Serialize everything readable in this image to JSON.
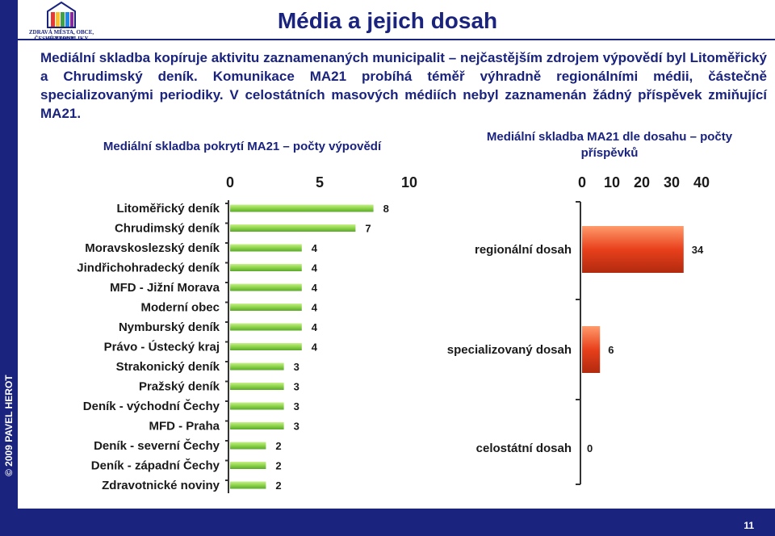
{
  "header": {
    "logo_line1": "ZDRAVÁ MĚSTA, OBCE, REGIONY",
    "logo_line2": "ČESKÉ REPUBLIKY",
    "title": "Média a jejich dosah"
  },
  "sidebar": {
    "copyright": "© 2009 PAVEL HEROT"
  },
  "intro": "Mediální skladba kopíruje aktivitu zaznamenaných municipalit – nejčastějším zdrojem výpovědí byl Litoměřický a Chrudimský deník. Komunikace MA21 probíhá téměř výhradně regionálními médii, částečně specializovanými periodiky. V celostátních masových médiích nebyl zaznamenán žádný příspěvek zmiňující MA21.",
  "footer": {
    "page_number": "11"
  },
  "colors": {
    "brand": "#1a237e",
    "green_bar": "#8ed44a",
    "orange_bar": "#e8401c"
  },
  "chart_data": [
    {
      "type": "bar",
      "orientation": "horizontal",
      "title": "Mediální skladba pokrytí MA21 – počty výpovědí",
      "xlim": [
        0,
        10
      ],
      "xticks": [
        "0",
        "5",
        "10"
      ],
      "categories": [
        "Litoměřický deník",
        "Chrudimský deník",
        "Moravskoslezský deník",
        "Jindřichohradecký deník",
        "MFD - Jižní Morava",
        "Moderní obec",
        "Nymburský deník",
        "Právo - Ústecký kraj",
        "Strakonický deník",
        "Pražský deník",
        "Deník - východní Čechy",
        "MFD - Praha",
        "Deník - severní Čechy",
        "Deník - západní Čechy",
        "Zdravotnické noviny"
      ],
      "values": [
        8,
        7,
        4,
        4,
        4,
        4,
        4,
        4,
        3,
        3,
        3,
        3,
        2,
        2,
        2
      ]
    },
    {
      "type": "bar",
      "orientation": "horizontal",
      "title": "Mediální skladba MA21 dle dosahu – počty příspěvků",
      "xlim": [
        0,
        40
      ],
      "xticks": [
        "0",
        "10",
        "20",
        "30",
        "40"
      ],
      "categories": [
        "regionální dosah",
        "specializovaný dosah",
        "celostátní dosah"
      ],
      "values": [
        34,
        6,
        0
      ]
    }
  ]
}
